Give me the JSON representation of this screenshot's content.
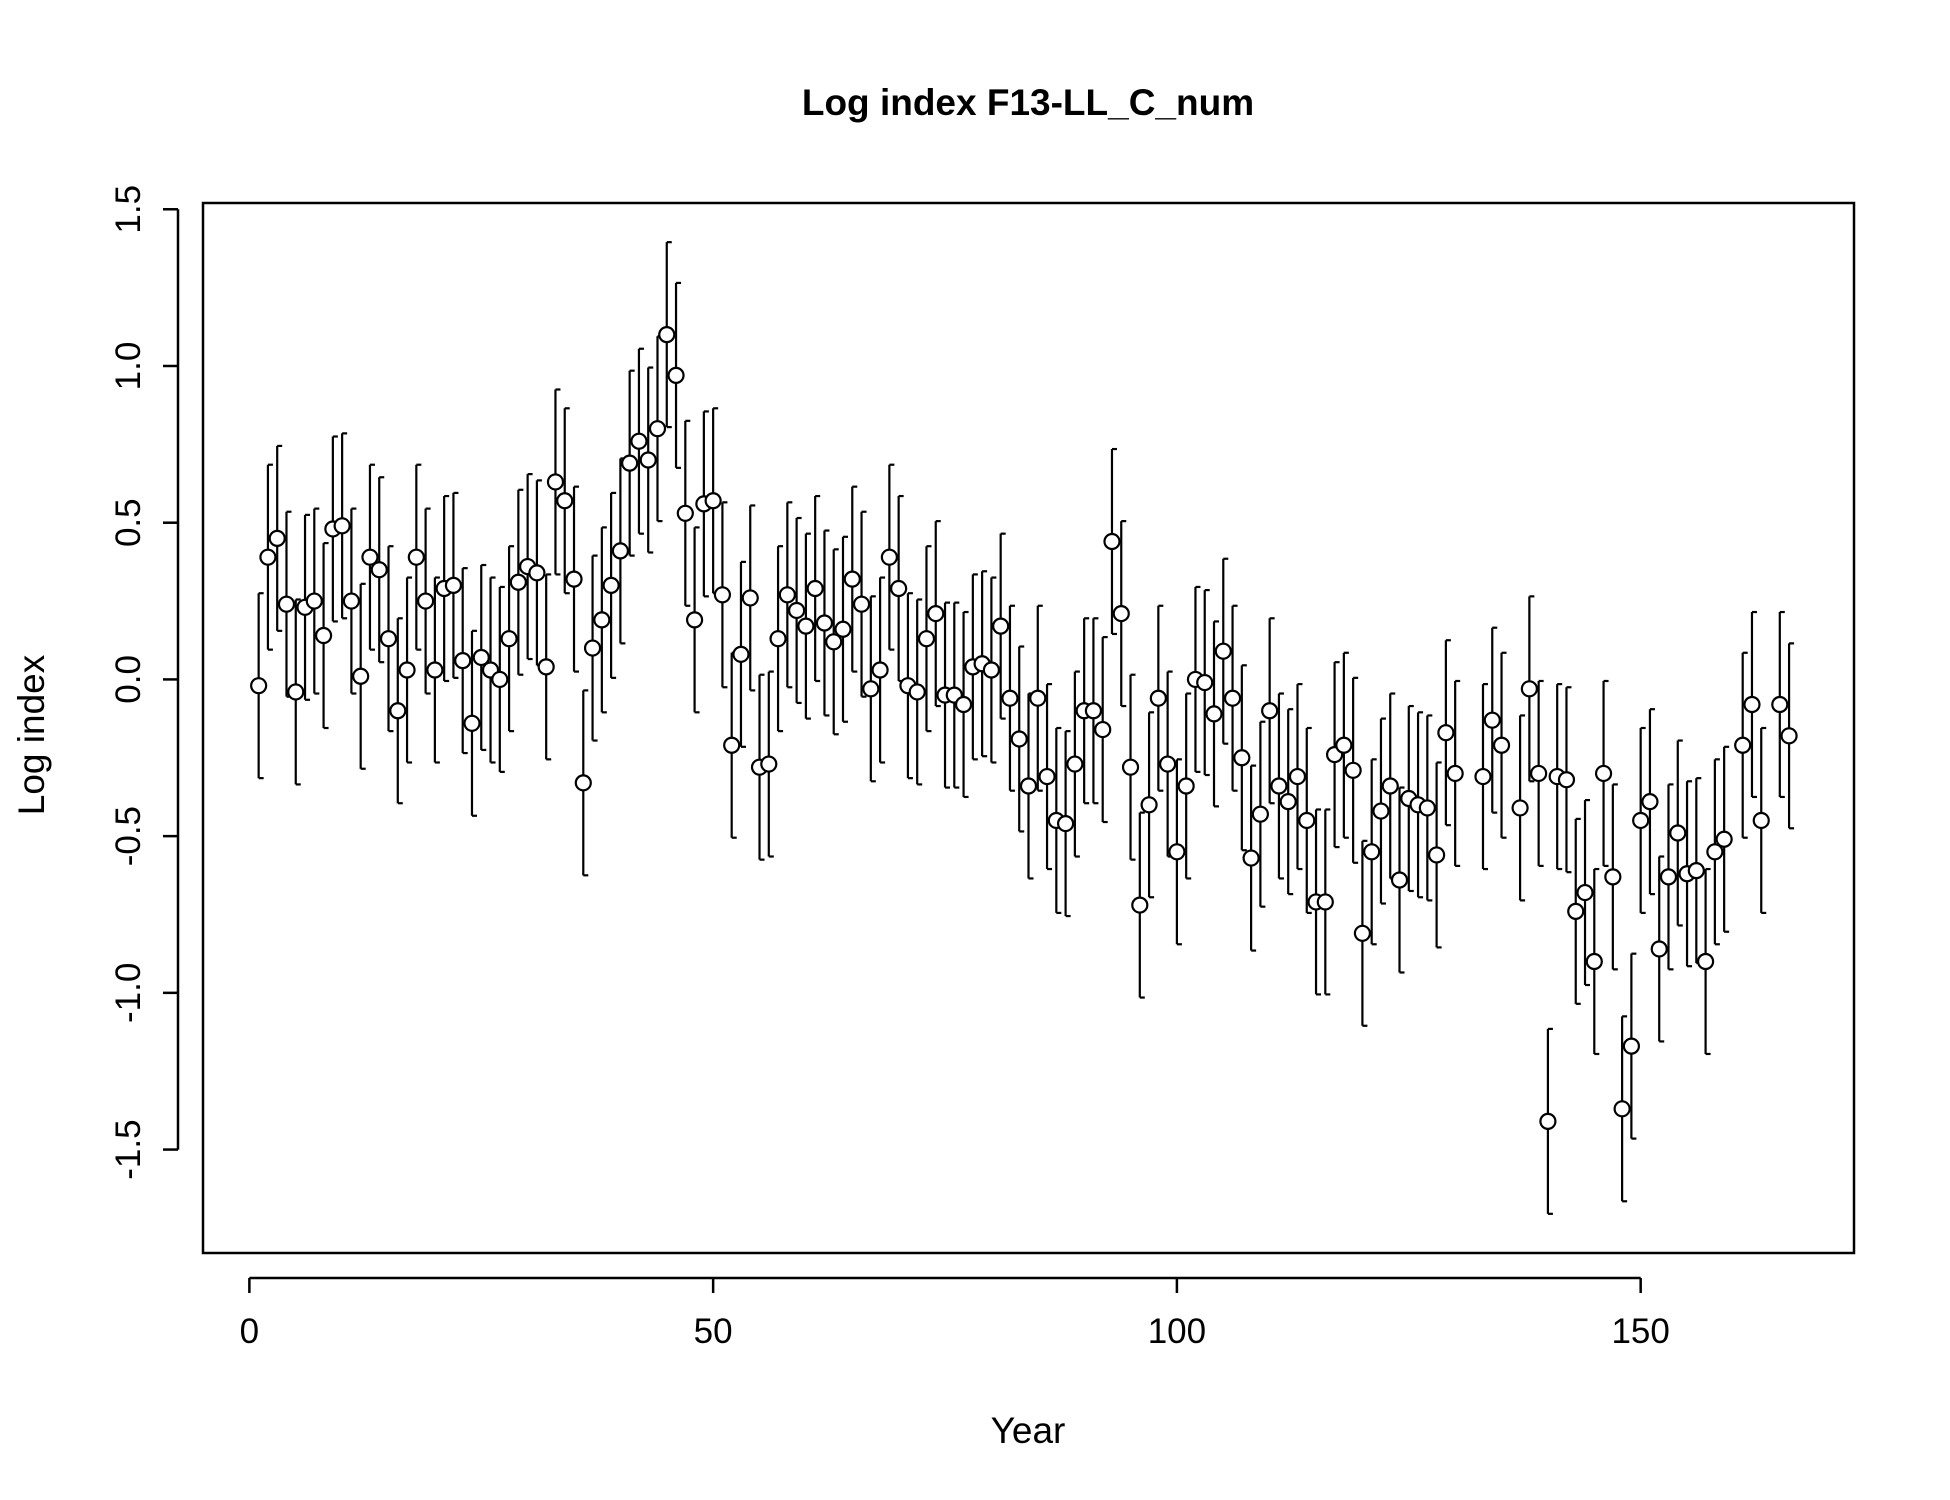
{
  "chart_data": {
    "type": "scatter",
    "title": "Log index F13-LL_C_num",
    "xlabel": "Year",
    "ylabel": "Log index",
    "xlim": [
      -5,
      173
    ],
    "ylim": [
      -1.83,
      1.52
    ],
    "x_ticks": [
      0,
      50,
      100,
      150
    ],
    "x_tick_labels": [
      "0",
      "50",
      "100",
      "150"
    ],
    "y_ticks": [
      -1.5,
      -1.0,
      -0.5,
      0.0,
      0.5,
      1.0,
      1.5
    ],
    "y_tick_labels": [
      "-1.5",
      "-1.0",
      "-0.5",
      "0.0",
      "0.5",
      "1.0",
      "1.5"
    ],
    "grid": false,
    "error_half_width": 0.295,
    "series": [
      {
        "x": [
          1,
          2,
          3,
          4,
          5,
          6,
          7,
          8,
          9,
          10,
          11,
          12,
          13,
          14,
          15,
          16,
          17,
          18,
          19,
          20,
          21,
          22,
          23,
          24,
          25,
          26,
          27,
          28,
          29,
          30,
          31,
          32,
          33,
          34,
          35,
          36,
          37,
          38,
          39,
          40,
          41,
          42,
          43,
          44,
          45,
          46,
          47,
          48,
          49,
          50,
          51,
          52,
          53,
          54,
          55,
          56,
          57,
          58,
          59,
          60,
          61,
          62,
          63,
          64,
          65,
          66,
          67,
          68,
          69,
          70,
          71,
          72,
          73,
          74,
          75,
          76,
          77,
          78,
          79,
          80,
          81,
          82,
          83,
          84,
          85,
          86,
          87,
          88,
          89,
          90,
          91,
          92,
          93,
          94,
          95,
          96,
          97,
          98,
          99,
          100,
          101,
          102,
          103,
          104,
          105,
          106,
          107,
          108,
          109,
          110,
          111,
          112,
          113,
          114,
          115,
          116,
          117,
          118,
          119,
          120,
          121,
          122,
          123,
          124,
          125,
          126,
          127,
          128,
          129,
          130,
          133,
          134,
          135,
          137,
          138,
          139,
          141,
          142,
          143,
          144,
          145,
          146,
          147,
          148,
          149,
          150,
          151,
          152,
          153,
          154,
          155,
          156,
          157,
          158,
          159,
          161,
          162,
          163,
          165,
          166
        ],
        "y": [
          -0.02,
          0.39,
          0.45,
          0.24,
          -0.04,
          0.23,
          0.25,
          0.14,
          0.48,
          0.49,
          0.25,
          0.01,
          0.39,
          0.35,
          0.13,
          -0.1,
          0.03,
          0.39,
          0.25,
          0.03,
          0.29,
          0.3,
          0.06,
          -0.14,
          0.07,
          0.03,
          0.0,
          0.13,
          0.31,
          0.36,
          0.34,
          0.04,
          0.63,
          0.57,
          0.32,
          -0.33,
          0.1,
          0.19,
          0.3,
          0.41,
          0.69,
          0.76,
          0.7,
          0.8,
          1.1,
          0.97,
          0.53,
          0.19,
          0.56,
          0.57,
          0.27,
          -0.21,
          0.08,
          0.26,
          -0.28,
          -0.27,
          0.13,
          0.27,
          0.22,
          0.17,
          0.29,
          0.18,
          0.12,
          0.16,
          0.32,
          0.24,
          -0.03,
          0.03,
          0.39,
          0.29,
          -0.02,
          -0.04,
          0.13,
          0.21,
          -0.05,
          -0.05,
          -0.08,
          0.04,
          0.05,
          0.03,
          0.17,
          -0.06,
          -0.19,
          -0.34,
          -0.06,
          -0.31,
          -0.45,
          -0.46,
          -0.27,
          -0.1,
          -0.1,
          -0.16,
          0.44,
          0.21,
          -0.28,
          -0.72,
          -0.4,
          -0.06,
          -0.27,
          -0.55,
          -0.34,
          0.0,
          -0.01,
          -0.11,
          0.09,
          -0.06,
          -0.25,
          -0.57,
          -0.43,
          -0.1,
          -0.34,
          -0.39,
          -0.31,
          -0.45,
          -0.71,
          -0.71,
          -0.24,
          -0.21,
          -0.29,
          -0.81,
          -0.55,
          -0.42,
          -0.34,
          -0.64,
          -0.38,
          -0.4,
          -0.41,
          -0.56,
          -0.17,
          -0.3,
          -0.31,
          -0.13,
          -0.21,
          -0.41,
          -0.03,
          -0.3,
          -0.31,
          -0.32,
          -0.74,
          -0.68,
          -0.9,
          -0.3,
          -0.63,
          -1.37,
          -1.17,
          -0.45,
          -0.39,
          -0.86,
          -0.63,
          -0.49,
          -0.62,
          -0.61,
          -0.9,
          -0.55,
          -0.51,
          -0.21,
          -0.08,
          -0.45,
          -0.08,
          -0.18
        ]
      }
    ],
    "outliers": [
      {
        "x": 140,
        "y": -1.41
      }
    ]
  }
}
